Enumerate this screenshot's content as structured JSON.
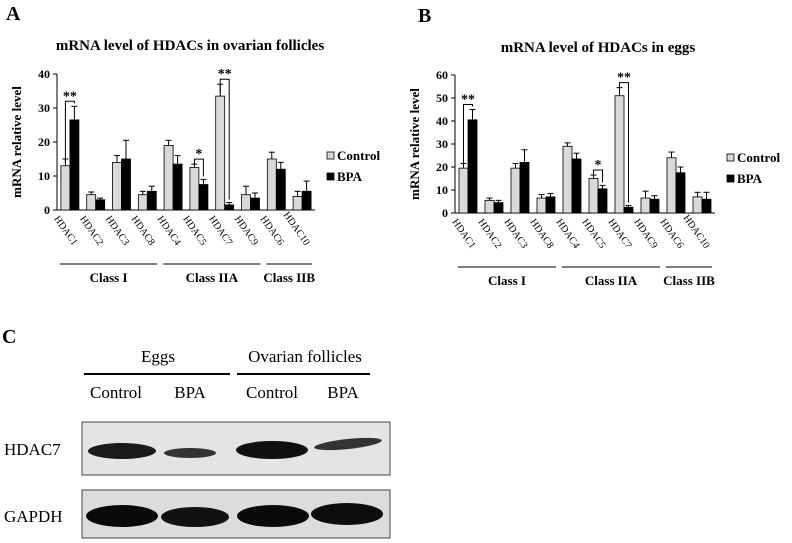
{
  "chart_data": [
    {
      "type": "bar",
      "panel": "A",
      "title": "mRNA level of HDACs in ovarian follicles",
      "y_label": "mRNA relative level",
      "categories": [
        "HDAC1",
        "HDAC2",
        "HDAC3",
        "HDAC8",
        "HDAC4",
        "HDAC5",
        "HDAC7",
        "HDAC9",
        "HDAC6",
        "HDAC10"
      ],
      "series": [
        {
          "name": "Control",
          "color": "#d9d9d9",
          "values": [
            13,
            4.5,
            14,
            4.5,
            19,
            12.5,
            33.5,
            4.5,
            15,
            4
          ],
          "errors": [
            2,
            0.8,
            2,
            1,
            1.5,
            1,
            3.5,
            2.5,
            2,
            1.5
          ]
        },
        {
          "name": "BPA",
          "color": "#000000",
          "values": [
            26.5,
            3,
            15,
            5.5,
            13.5,
            7.5,
            1.5,
            3.5,
            12,
            5.5
          ],
          "errors": [
            4,
            0.5,
            5.5,
            1.5,
            2.5,
            1.5,
            0.7,
            1.5,
            2,
            3
          ]
        }
      ],
      "ylim": [
        0,
        40
      ],
      "yticks": [
        0,
        10,
        20,
        30,
        40
      ],
      "legend": "right",
      "annotations": [
        {
          "category": "HDAC1",
          "text": "**"
        },
        {
          "category": "HDAC5",
          "text": "*"
        },
        {
          "category": "HDAC7",
          "text": "**"
        }
      ],
      "groups": [
        {
          "label": "Class I",
          "from": "HDAC1",
          "to": "HDAC8"
        },
        {
          "label": "Class IIA",
          "from": "HDAC4",
          "to": "HDAC9"
        },
        {
          "label": "Class IIB",
          "from": "HDAC6",
          "to": "HDAC10"
        }
      ]
    },
    {
      "type": "bar",
      "panel": "B",
      "title": "mRNA level of HDACs in eggs",
      "y_label": "mRNA relative level",
      "categories": [
        "HDAC1",
        "HDAC2",
        "HDAC3",
        "HDAC8",
        "HDAC4",
        "HDAC5",
        "HDAC7",
        "HDAC9",
        "HDAC6",
        "HDAC10"
      ],
      "series": [
        {
          "name": "Control",
          "color": "#d9d9d9",
          "values": [
            19.5,
            5.5,
            19.5,
            6.5,
            29,
            15,
            51,
            6.5,
            24,
            7
          ],
          "errors": [
            2,
            1,
            2,
            1.5,
            1.5,
            1.5,
            3.5,
            3,
            2.5,
            2
          ]
        },
        {
          "name": "BPA",
          "color": "#000000",
          "values": [
            40.5,
            4.5,
            22,
            7,
            23.5,
            10.5,
            2.5,
            6,
            17.5,
            6
          ],
          "errors": [
            4.5,
            1,
            5.5,
            1.5,
            2.5,
            1.5,
            0.8,
            1.5,
            2.5,
            3
          ]
        }
      ],
      "ylim": [
        0,
        60
      ],
      "yticks": [
        0,
        10,
        20,
        30,
        40,
        50,
        60
      ],
      "legend": "right",
      "annotations": [
        {
          "category": "HDAC1",
          "text": "**"
        },
        {
          "category": "HDAC5",
          "text": "*"
        },
        {
          "category": "HDAC7",
          "text": "**"
        }
      ],
      "groups": [
        {
          "label": "Class I",
          "from": "HDAC1",
          "to": "HDAC8"
        },
        {
          "label": "Class IIA",
          "from": "HDAC4",
          "to": "HDAC9"
        },
        {
          "label": "Class IIB",
          "from": "HDAC6",
          "to": "HDAC10"
        }
      ]
    }
  ],
  "blot": {
    "panel": "C",
    "groups": [
      {
        "label": "Eggs",
        "lanes": [
          "Control",
          "BPA"
        ]
      },
      {
        "label": "Ovarian follicles",
        "lanes": [
          "Control",
          "BPA"
        ]
      }
    ],
    "rows": [
      "HDAC7",
      "GAPDH"
    ]
  }
}
